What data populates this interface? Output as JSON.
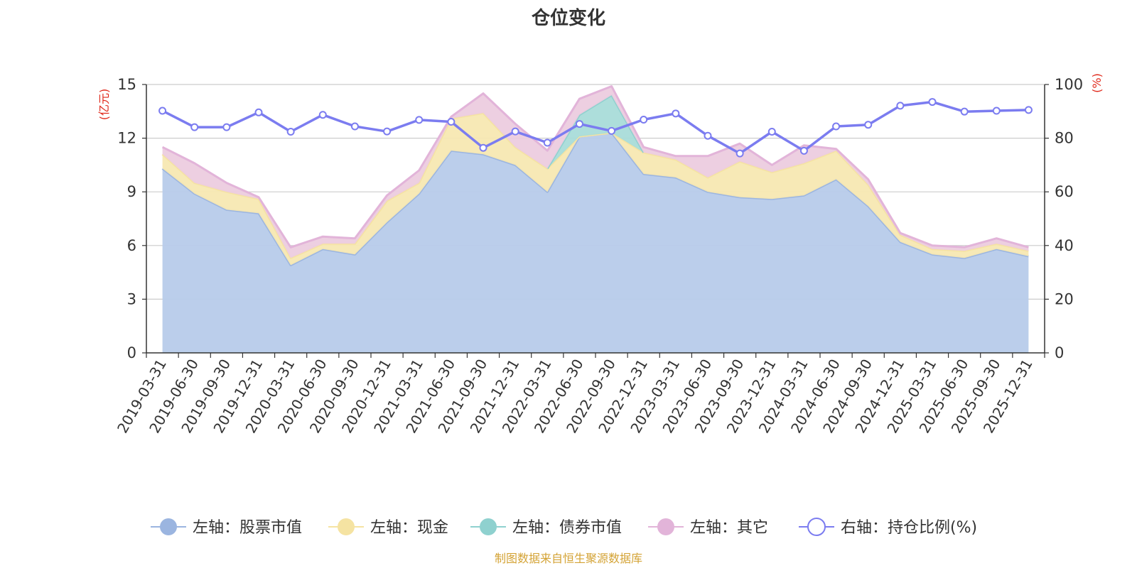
{
  "chart_data": {
    "type": "area",
    "title": "仓位变化",
    "source": "制图数据来自恒生聚源数据库",
    "left_axis": {
      "unit": "(亿元)",
      "min": 0,
      "max": 15,
      "ticks": [
        "0",
        "3",
        "6",
        "9",
        "12",
        "15"
      ]
    },
    "right_axis": {
      "unit": "(%)",
      "min": 0,
      "max": 100,
      "ticks": [
        "0",
        "20",
        "40",
        "60",
        "80",
        "100"
      ]
    },
    "categories": [
      "2019-03-31",
      "2019-06-30",
      "2019-09-30",
      "2019-12-31",
      "2020-03-31",
      "2020-06-30",
      "2020-09-30",
      "2020-12-31",
      "2021-03-31",
      "2021-06-30",
      "2021-09-30",
      "2021-12-31",
      "2022-03-31",
      "2022-06-30",
      "2022-09-30",
      "2022-12-31",
      "2023-03-31",
      "2023-06-30",
      "2023-09-30",
      "2023-12-31",
      "2024-03-31",
      "2024-06-30",
      "2024-09-30",
      "2024-12-31",
      "2025-03-31",
      "2025-06-30",
      "2025-09-30",
      "2025-12-31"
    ],
    "series": [
      {
        "name": "左轴：股票市值",
        "axis": "left",
        "color": "#9bb5e0",
        "fill": "#b7cbea",
        "values": [
          10.3,
          8.9,
          8.0,
          7.8,
          4.9,
          5.8,
          5.5,
          7.3,
          8.9,
          11.3,
          11.1,
          10.5,
          9.0,
          12.1,
          12.3,
          10.0,
          9.8,
          9.0,
          8.7,
          8.6,
          8.8,
          9.7,
          8.2,
          6.2,
          5.5,
          5.3,
          5.8,
          5.4
        ]
      },
      {
        "name": "左轴：现金",
        "axis": "left",
        "color": "#f5e3a2",
        "fill": "#f7e8b2",
        "values": [
          0.8,
          0.6,
          1.0,
          0.8,
          0.4,
          0.3,
          0.6,
          1.2,
          0.6,
          1.8,
          2.3,
          1.0,
          1.3,
          0.0,
          0.0,
          1.2,
          1.0,
          0.8,
          2.0,
          1.5,
          1.8,
          1.6,
          1.2,
          0.4,
          0.3,
          0.4,
          0.3,
          0.3
        ]
      },
      {
        "name": "左轴：债券市值",
        "axis": "left",
        "color": "#8fd1cf",
        "fill": "#a9dcd9",
        "values": [
          0,
          0,
          0,
          0,
          0,
          0,
          0,
          0,
          0,
          0,
          0,
          0,
          0,
          1.2,
          2.1,
          0,
          0,
          0,
          0,
          0,
          0,
          0,
          0,
          0,
          0,
          0,
          0,
          0
        ]
      },
      {
        "name": "左轴：其它",
        "axis": "left",
        "color": "#e2b4d9",
        "fill": "#ecccdf",
        "values": [
          0.4,
          1.1,
          0.5,
          0.1,
          0.6,
          0.4,
          0.3,
          0.3,
          0.7,
          0.1,
          1.1,
          1.3,
          1.0,
          0.9,
          0.5,
          0.3,
          0.2,
          1.2,
          1.0,
          0.4,
          1.0,
          0.1,
          0.3,
          0.1,
          0.2,
          0.2,
          0.3,
          0.2
        ]
      },
      {
        "name": "右轴：持仓比例(%)",
        "axis": "right",
        "color": "#7b7cf0",
        "values": [
          90.2,
          84.1,
          84.1,
          89.6,
          82.4,
          88.7,
          84.4,
          82.5,
          86.8,
          86.1,
          76.4,
          82.5,
          78.3,
          85.3,
          82.7,
          86.9,
          89.2,
          80.9,
          74.3,
          82.4,
          75.3,
          84.4,
          85.0,
          92.1,
          93.5,
          89.9,
          90.2,
          90.5
        ]
      }
    ]
  },
  "colors": {
    "title": "#333333",
    "axis": "#333333",
    "grid": "#cfcfcf",
    "unit": "#e0291b",
    "source": "#d4a335"
  }
}
